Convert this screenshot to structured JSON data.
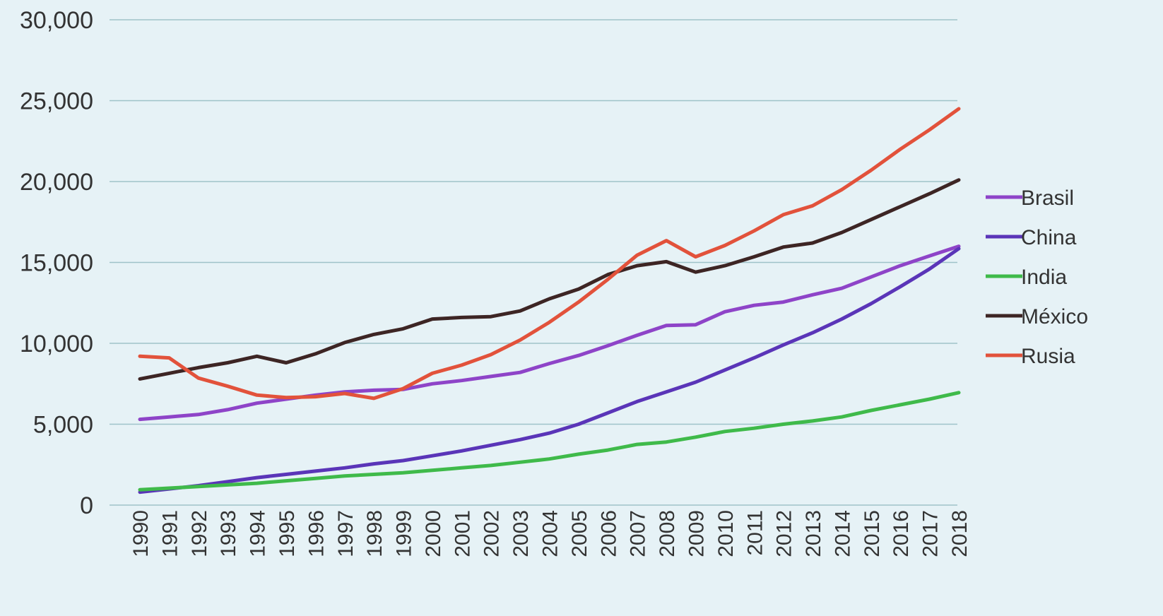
{
  "colors": {
    "background": "#e6f2f6",
    "grid": "#9fc3c9",
    "axis_text": "#333333"
  },
  "chart_data": {
    "type": "line",
    "title": "",
    "xlabel": "",
    "ylabel": "",
    "ylim": [
      0,
      30000
    ],
    "yticks": [
      0,
      5000,
      10000,
      15000,
      20000,
      25000,
      30000
    ],
    "ytick_labels": [
      "0",
      "5,000",
      "10,000",
      "15,000",
      "20,000",
      "25,000",
      "30,000"
    ],
    "grid": true,
    "legend_position": "right",
    "categories": [
      "1990",
      "1991",
      "1992",
      "1993",
      "1994",
      "1995",
      "1996",
      "1997",
      "1998",
      "1999",
      "2000",
      "2001",
      "2002",
      "2003",
      "2004",
      "2005",
      "2006",
      "2007",
      "2008",
      "2009",
      "2010",
      "2011",
      "2012",
      "2013",
      "2014",
      "2015",
      "2016",
      "2017",
      "2018"
    ],
    "series": [
      {
        "name": "Brasil",
        "color": "#8e44c8",
        "values": [
          5300,
          5450,
          5600,
          5900,
          6300,
          6550,
          6800,
          7000,
          7100,
          7150,
          7500,
          7700,
          7950,
          8200,
          8750,
          9250,
          9850,
          10500,
          11100,
          11150,
          11950,
          12350,
          12550,
          13000,
          13400,
          14100,
          14800,
          15400,
          16000
        ]
      },
      {
        "name": "China",
        "color": "#5a35b8",
        "values": [
          800,
          1000,
          1200,
          1450,
          1700,
          1900,
          2100,
          2300,
          2550,
          2750,
          3050,
          3350,
          3700,
          4050,
          4450,
          5000,
          5700,
          6400,
          7000,
          7600,
          8350,
          9100,
          9900,
          10650,
          11500,
          12450,
          13500,
          14600,
          15850
        ]
      },
      {
        "name": "India",
        "color": "#3fba4a",
        "values": [
          950,
          1050,
          1150,
          1250,
          1350,
          1500,
          1650,
          1800,
          1900,
          2000,
          2150,
          2300,
          2450,
          2650,
          2850,
          3150,
          3400,
          3750,
          3900,
          4200,
          4550,
          4750,
          5000,
          5200,
          5450,
          5850,
          6200,
          6550,
          6950
        ]
      },
      {
        "name": "México",
        "color": "#3d2524",
        "values": [
          7800,
          8150,
          8500,
          8800,
          9200,
          8800,
          9350,
          10050,
          10550,
          10900,
          11500,
          11600,
          11650,
          12000,
          12750,
          13350,
          14250,
          14800,
          15050,
          14400,
          14800,
          15350,
          15950,
          16200,
          16850,
          17650,
          18450,
          19250,
          20100
        ]
      },
      {
        "name": "Rusia",
        "color": "#e2523b",
        "values": [
          9200,
          9100,
          7850,
          7350,
          6800,
          6650,
          6700,
          6900,
          6600,
          7200,
          8150,
          8650,
          9300,
          10200,
          11300,
          12550,
          13950,
          15450,
          16350,
          15350,
          16050,
          16950,
          17950,
          18500,
          19500,
          20700,
          22000,
          23200,
          24500
        ]
      }
    ]
  }
}
